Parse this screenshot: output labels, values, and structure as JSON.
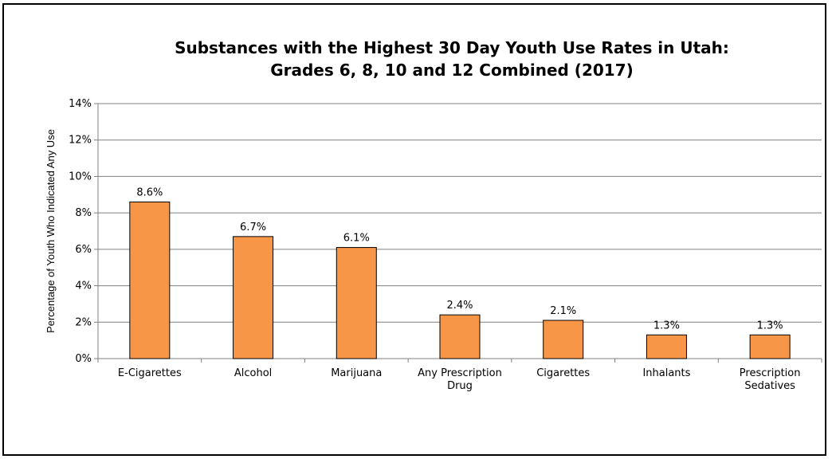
{
  "chart_data": {
    "type": "bar",
    "title": [
      "Substances with the Highest 30 Day Youth Use Rates in Utah:",
      "Grades 6, 8, 10 and 12 Combined (2017)"
    ],
    "xlabel": "",
    "ylabel": "Percentage of Youth Who Indicated Any Use",
    "ylim": [
      0,
      14
    ],
    "yticks": [
      "0%",
      "2%",
      "4%",
      "6%",
      "8%",
      "10%",
      "12%",
      "14%"
    ],
    "grid": true,
    "legend": "none",
    "categories": [
      [
        "E-Cigarettes"
      ],
      [
        "Alcohol"
      ],
      [
        "Marijuana"
      ],
      [
        "Any Prescription",
        "Drug"
      ],
      [
        "Cigarettes"
      ],
      [
        "Inhalants"
      ],
      [
        "Prescription",
        "Sedatives"
      ]
    ],
    "values": [
      8.6,
      6.7,
      6.1,
      2.4,
      2.1,
      1.3,
      1.3
    ],
    "data_labels": [
      "8.6%",
      "6.7%",
      "6.1%",
      "2.4%",
      "2.1%",
      "1.3%",
      "1.3%"
    ],
    "colors": {
      "bar_fill": "#F79646",
      "bar_stroke": "#000000",
      "grid": "#808080",
      "axis": "#808080"
    }
  }
}
